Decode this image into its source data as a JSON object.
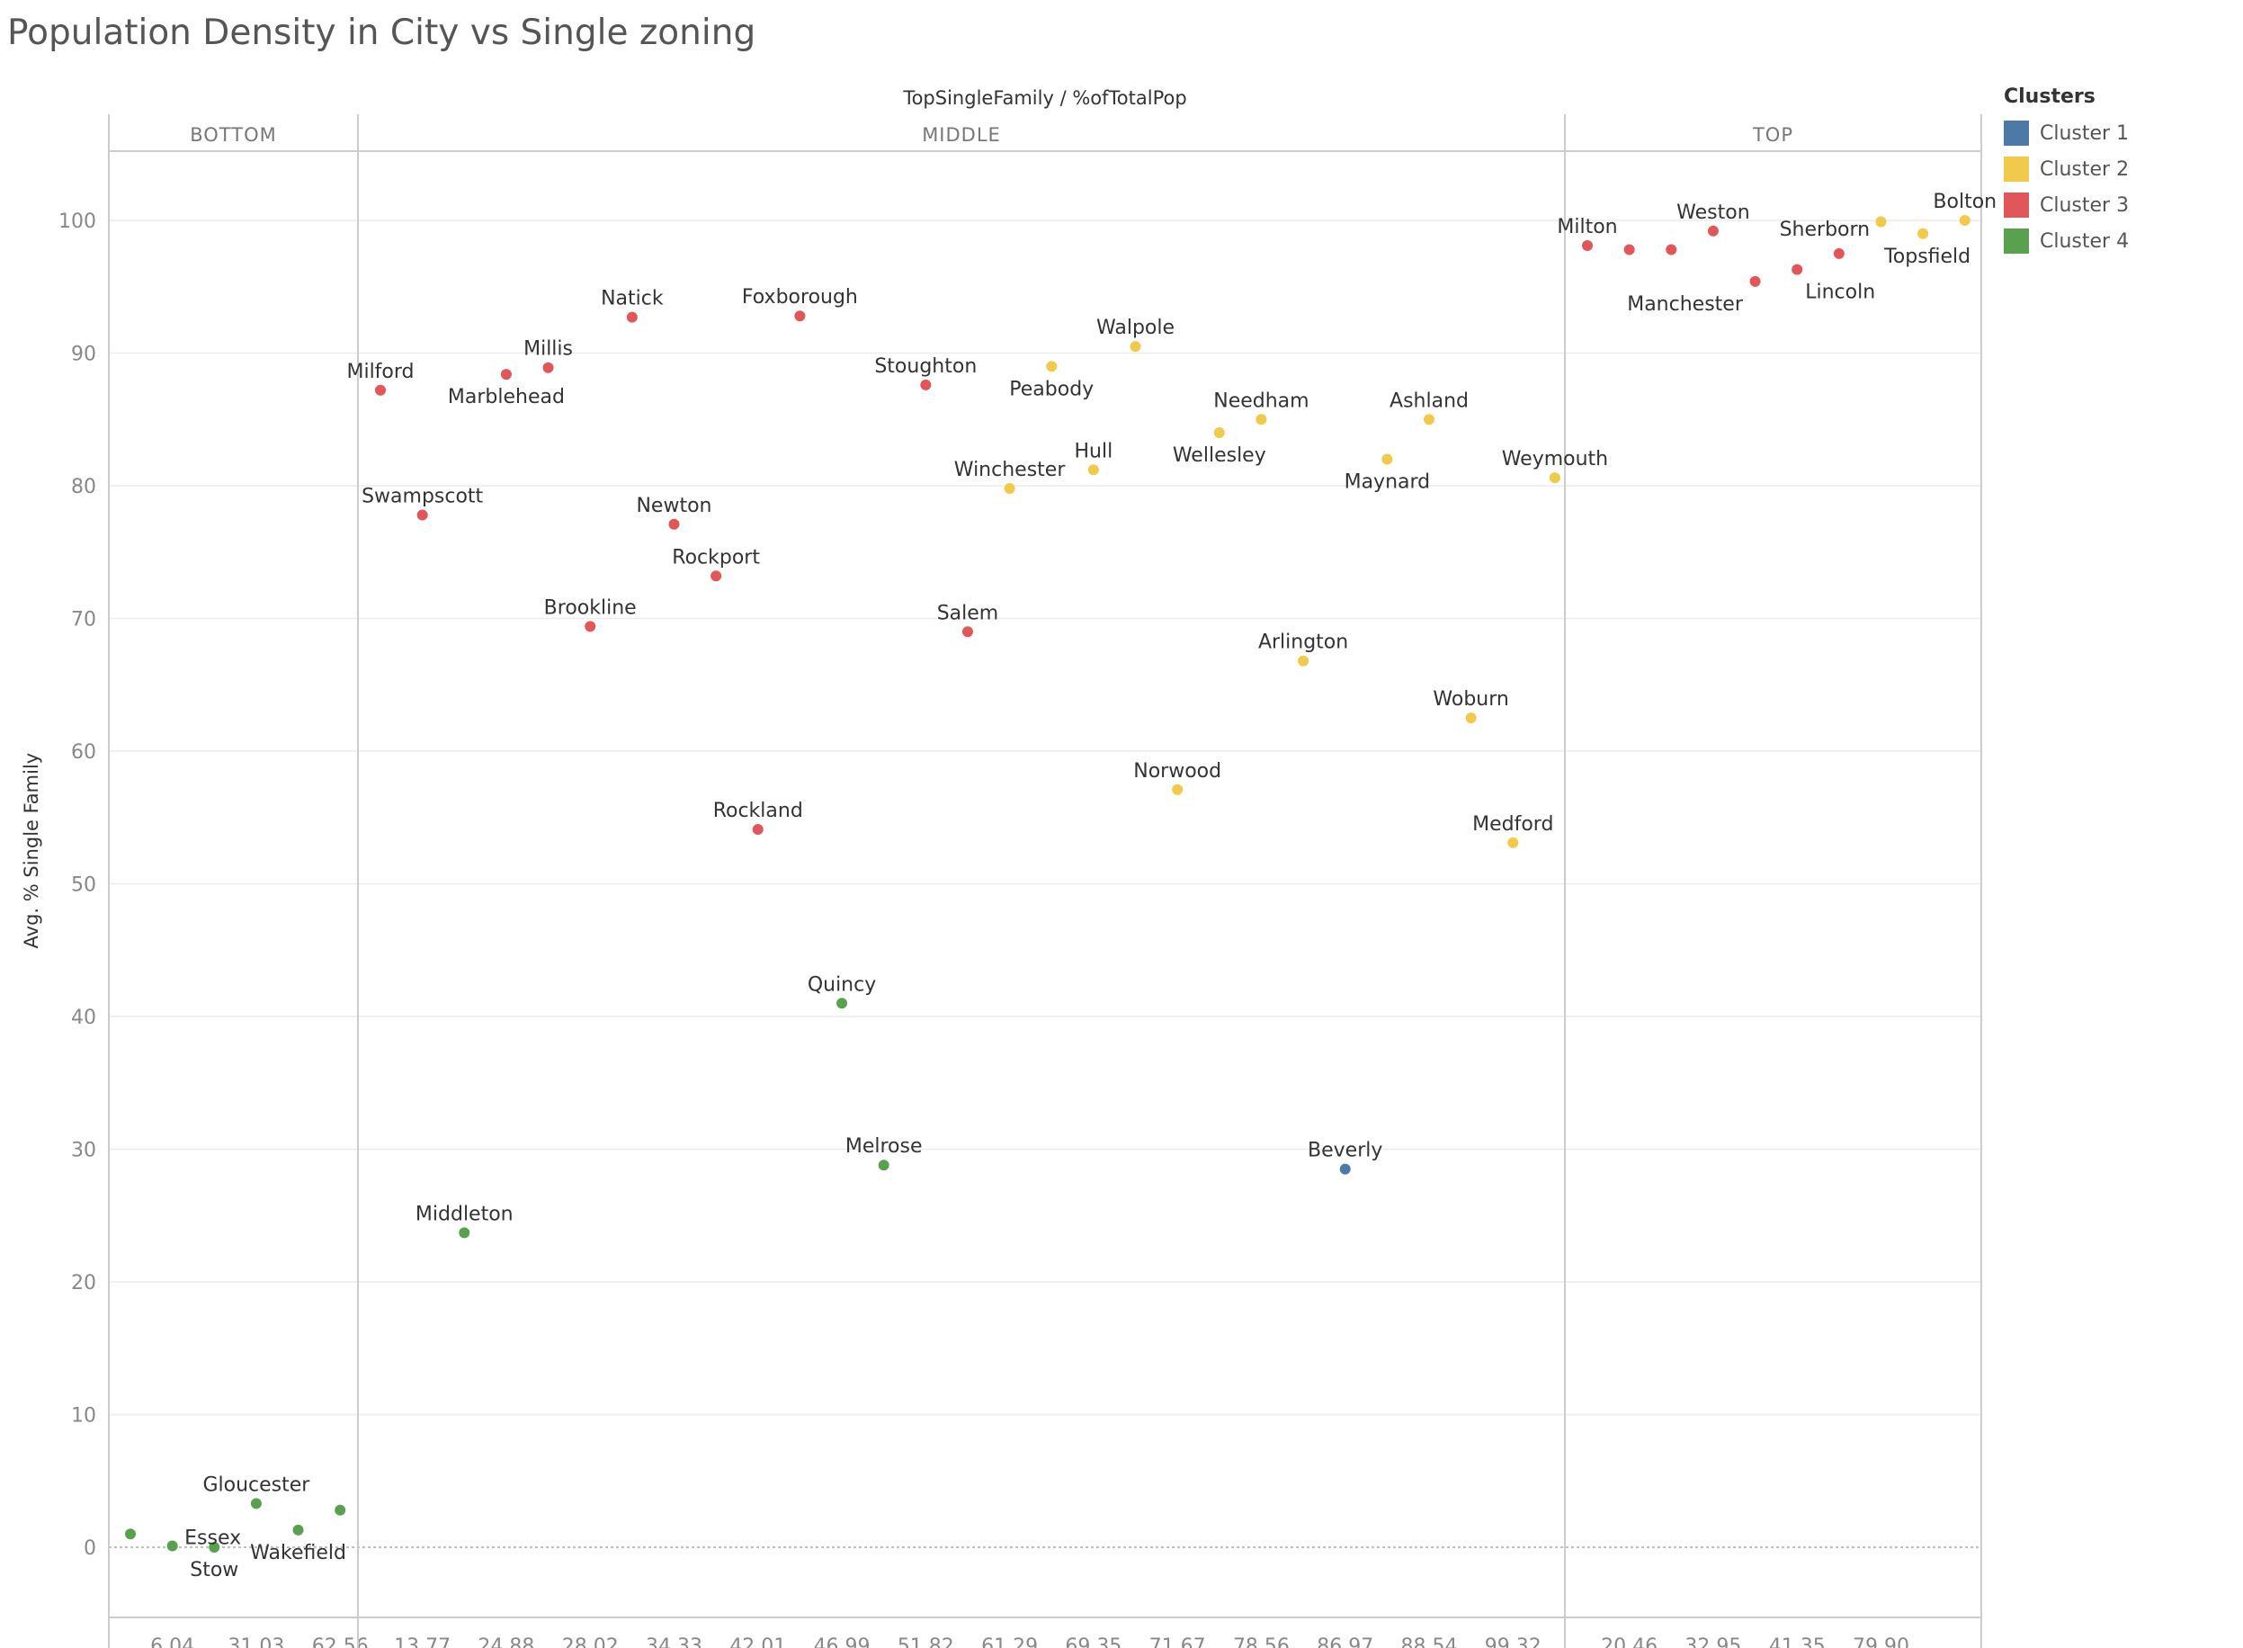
{
  "chart_data": {
    "type": "scatter",
    "title": "Population Density in City vs Single zoning",
    "column_header": "TopSingleFamily / %ofTotalPop",
    "ylabel": "Avg. % Single Family",
    "ylim": [
      -5,
      105
    ],
    "yticks": [
      0,
      10,
      20,
      30,
      40,
      50,
      60,
      70,
      80,
      90,
      100
    ],
    "grid": true,
    "legend_placement": "top-right",
    "legend_title": "Clusters",
    "clusters": [
      {
        "name": "Cluster 1",
        "color": "#4e79a7"
      },
      {
        "name": "Cluster 2",
        "color": "#f1c94b"
      },
      {
        "name": "Cluster 3",
        "color": "#e15759"
      },
      {
        "name": "Cluster 4",
        "color": "#59a14f"
      }
    ],
    "panes": [
      {
        "label": "BOTTOM",
        "ticks": [
          "6.04",
          "31.03",
          "62.56"
        ],
        "points": [
          {
            "tick": 0,
            "y": 1.0,
            "cluster": 4,
            "label": ""
          },
          {
            "tick": 1,
            "y": 0.1,
            "cluster": 4,
            "label": "Essex"
          },
          {
            "tick": 2,
            "y": 0.0,
            "cluster": 4,
            "label": "Stow"
          },
          {
            "tick": 3,
            "y": 3.3,
            "cluster": 4,
            "label": "Gloucester"
          },
          {
            "tick": 4,
            "y": 1.3,
            "cluster": 4,
            "label": "Wakefield"
          },
          {
            "tick": 5,
            "y": 2.8,
            "cluster": 4,
            "label": ""
          }
        ]
      },
      {
        "label": "MIDDLE",
        "ticks": [
          "13.77",
          "24.88",
          "28.02",
          "34.33",
          "42.01",
          "46.99",
          "51.82",
          "61.29",
          "69.35",
          "71.67",
          "78.56",
          "86.97",
          "88.54",
          "99.32"
        ],
        "points": [
          {
            "tick": 0,
            "y": 87.2,
            "cluster": 3,
            "label": "Milford"
          },
          {
            "tick": 1,
            "y": 77.8,
            "cluster": 3,
            "label": "Swampscott"
          },
          {
            "tick": 2,
            "y": 23.7,
            "cluster": 4,
            "label": "Middleton"
          },
          {
            "tick": 3,
            "y": 88.4,
            "cluster": 3,
            "label": "Marblehead"
          },
          {
            "tick": 4,
            "y": 88.9,
            "cluster": 3,
            "label": "Millis"
          },
          {
            "tick": 5,
            "y": 69.4,
            "cluster": 3,
            "label": "Brookline"
          },
          {
            "tick": 6,
            "y": 92.7,
            "cluster": 3,
            "label": "Natick"
          },
          {
            "tick": 7,
            "y": 77.1,
            "cluster": 3,
            "label": "Newton"
          },
          {
            "tick": 8,
            "y": 73.2,
            "cluster": 3,
            "label": "Rockport"
          },
          {
            "tick": 9,
            "y": 54.1,
            "cluster": 3,
            "label": "Rockland"
          },
          {
            "tick": 10,
            "y": 92.8,
            "cluster": 3,
            "label": "Foxborough"
          },
          {
            "tick": 11,
            "y": 41.0,
            "cluster": 4,
            "label": "Quincy"
          },
          {
            "tick": 12,
            "y": 28.8,
            "cluster": 4,
            "label": "Melrose"
          },
          {
            "tick": 13,
            "y": 87.6,
            "cluster": 3,
            "label": "Stoughton"
          },
          {
            "tick": 14,
            "y": 69.0,
            "cluster": 3,
            "label": "Salem"
          },
          {
            "tick": 15,
            "y": 79.8,
            "cluster": 2,
            "label": "Winchester"
          },
          {
            "tick": 16,
            "y": 89.0,
            "cluster": 2,
            "label": "Peabody"
          },
          {
            "tick": 17,
            "y": 81.2,
            "cluster": 2,
            "label": "Hull"
          },
          {
            "tick": 18,
            "y": 90.5,
            "cluster": 2,
            "label": "Walpole"
          },
          {
            "tick": 19,
            "y": 57.1,
            "cluster": 2,
            "label": "Norwood"
          },
          {
            "tick": 20,
            "y": 84.0,
            "cluster": 2,
            "label": "Wellesley"
          },
          {
            "tick": 21,
            "y": 85.0,
            "cluster": 2,
            "label": "Needham"
          },
          {
            "tick": 22,
            "y": 66.8,
            "cluster": 2,
            "label": "Arlington"
          },
          {
            "tick": 23,
            "y": 28.5,
            "cluster": 1,
            "label": "Beverly"
          },
          {
            "tick": 24,
            "y": 82.0,
            "cluster": 2,
            "label": "Maynard"
          },
          {
            "tick": 25,
            "y": 85.0,
            "cluster": 2,
            "label": "Ashland"
          },
          {
            "tick": 26,
            "y": 62.5,
            "cluster": 2,
            "label": "Woburn"
          },
          {
            "tick": 27,
            "y": 53.1,
            "cluster": 2,
            "label": "Medford"
          },
          {
            "tick": 28,
            "y": 80.6,
            "cluster": 2,
            "label": "Weymouth"
          }
        ]
      },
      {
        "label": "TOP",
        "ticks": [
          "20.46",
          "32.95",
          "41.35",
          "79.90"
        ],
        "points": [
          {
            "tick": 0,
            "y": 98.1,
            "cluster": 3,
            "label": "Milton"
          },
          {
            "tick": 1,
            "y": 97.8,
            "cluster": 3,
            "label": ""
          },
          {
            "tick": 2,
            "y": 97.8,
            "cluster": 3,
            "label": ""
          },
          {
            "tick": 3,
            "y": 99.2,
            "cluster": 3,
            "label": "Weston"
          },
          {
            "tick": 4,
            "y": 95.4,
            "cluster": 3,
            "label": "Manchester"
          },
          {
            "tick": 5,
            "y": 96.3,
            "cluster": 3,
            "label": "Lincoln"
          },
          {
            "tick": 6,
            "y": 97.5,
            "cluster": 3,
            "label": "Sherborn"
          },
          {
            "tick": 7,
            "y": 99.9,
            "cluster": 2,
            "label": ""
          },
          {
            "tick": 8,
            "y": 99.0,
            "cluster": 2,
            "label": "Topsfield"
          },
          {
            "tick": 9,
            "y": 100.0,
            "cluster": 2,
            "label": "Bolton"
          }
        ]
      }
    ]
  }
}
